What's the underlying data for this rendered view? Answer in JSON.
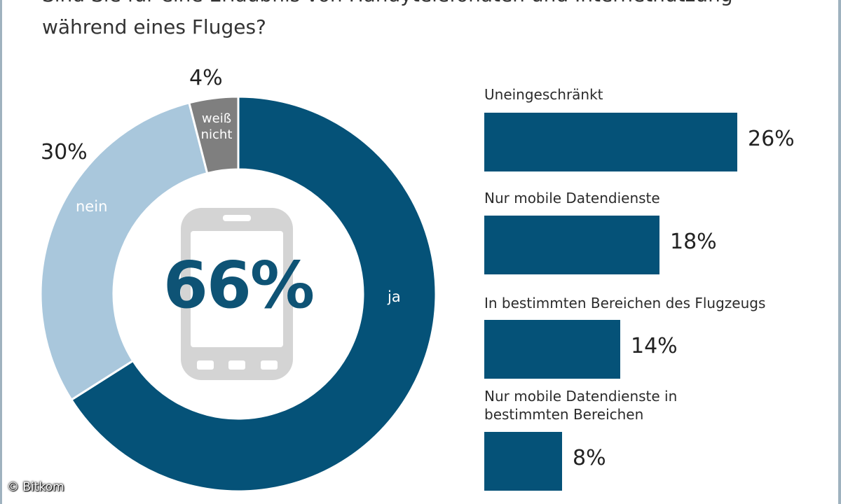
{
  "title_lines": [
    "Sind Sie für eine Erlaubnis von Handytelefonaten und Internetnutzung",
    "während eines Fluges?"
  ],
  "credit": "© Bitkom",
  "colors": {
    "dark_blue": "#055278",
    "light_blue": "#a9c7dc",
    "gray": "#7f7f7f",
    "phone_icon": "#d4d4d4"
  },
  "icons": [
    "smartphone-icon"
  ],
  "chart_data": [
    {
      "type": "pie",
      "donut": true,
      "center_label": "66%",
      "slices": [
        {
          "label": "ja",
          "value": 66,
          "value_label": "",
          "color": "#055278"
        },
        {
          "label": "nein",
          "value": 30,
          "value_label": "30%",
          "color": "#a9c7dc"
        },
        {
          "label": "weiß nicht",
          "value": 4,
          "value_label": "4%",
          "color": "#7f7f7f"
        }
      ]
    },
    {
      "type": "bar",
      "orientation": "horizontal",
      "categories": [
        "Uneingeschränkt",
        "Nur mobile Datendienste",
        "In bestimmten Bereichen des Flugzeugs",
        "Nur mobile Datendienste in bestimmten Bereichen"
      ],
      "category_lines": [
        [
          "Uneingeschränkt"
        ],
        [
          "Nur mobile Datendienste"
        ],
        [
          "In bestimmten Bereichen des Flugzeugs"
        ],
        [
          "Nur mobile Datendienste in",
          "bestimmten Bereichen"
        ]
      ],
      "values": [
        26,
        18,
        14,
        8
      ],
      "value_labels": [
        "26%",
        "18%",
        "14%",
        "8%"
      ],
      "unit": "%"
    }
  ]
}
